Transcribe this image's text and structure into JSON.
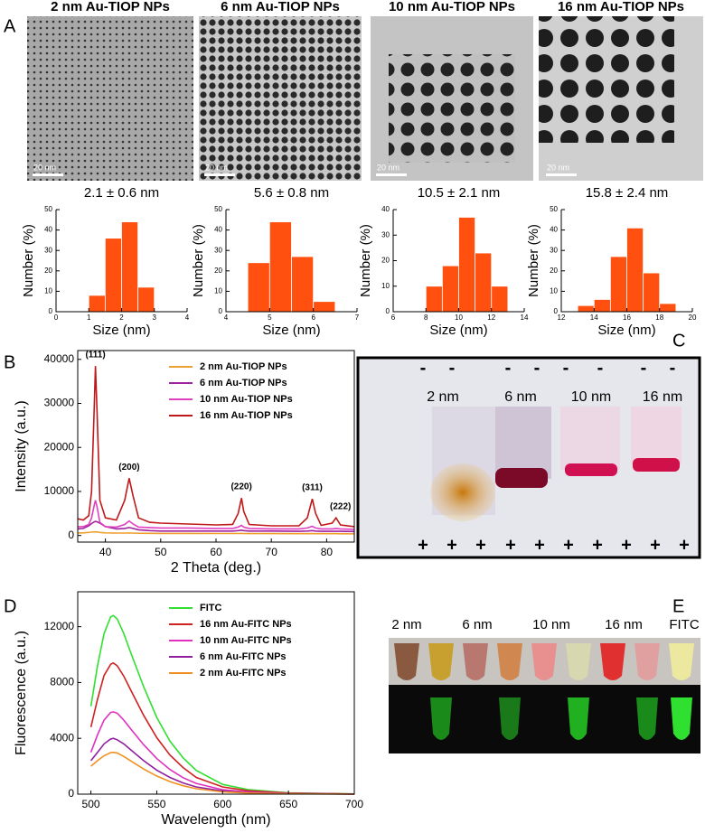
{
  "panel_labels": [
    "A",
    "B",
    "C",
    "D",
    "E"
  ],
  "tem_images": [
    {
      "title": "2 nm Au-TIOP NPs",
      "scale_bar": "20 nm"
    },
    {
      "title": "6 nm Au-TIOP NPs",
      "scale_bar": "20 nm"
    },
    {
      "title": "10 nm Au-TIOP NPs",
      "scale_bar": "20 nm"
    },
    {
      "title": "16 nm Au-TIOP NPs",
      "scale_bar": "20 nm"
    }
  ],
  "gel": {
    "lane_labels": [
      "2 nm",
      "6 nm",
      "10 nm",
      "16 nm"
    ],
    "minus": "-",
    "plus": "+"
  },
  "photo": {
    "labels": [
      "2 nm",
      "6 nm",
      "10 nm",
      "16 nm",
      "FITC"
    ]
  },
  "chart_data": [
    {
      "type": "histogram",
      "title": "2.1 ± 0.6 nm",
      "x_label": "Size (nm)",
      "y_label": "Number (%)",
      "bins": [
        1,
        1.5,
        2,
        2.5,
        3
      ],
      "values": [
        8,
        36,
        44,
        12
      ],
      "color": "#ff5010",
      "xlim": [
        0,
        4
      ],
      "xticks": [
        0,
        1,
        2,
        3,
        4
      ],
      "ylim": [
        0,
        50
      ],
      "yticks": [
        0,
        10,
        20,
        30,
        40,
        50
      ]
    },
    {
      "type": "histogram",
      "title": "5.6 ± 0.8 nm",
      "x_label": "Size (nm)",
      "y_label": "Number (%)",
      "bins": [
        4.5,
        5,
        5.5,
        6,
        6.5
      ],
      "values": [
        24,
        44,
        27,
        5
      ],
      "color": "#ff5010",
      "xlim": [
        4,
        7
      ],
      "xticks": [
        4,
        5,
        6,
        7
      ],
      "ylim": [
        0,
        50
      ],
      "yticks": [
        0,
        10,
        20,
        30,
        40,
        50
      ]
    },
    {
      "type": "histogram",
      "title": "10.5 ± 2.1 nm",
      "x_label": "Size (nm)",
      "y_label": "Number (%)",
      "bins": [
        8,
        9,
        10,
        11,
        12,
        13
      ],
      "values": [
        10,
        18,
        37,
        23,
        10
      ],
      "color": "#ff5010",
      "xlim": [
        6,
        14
      ],
      "xticks": [
        6,
        8,
        10,
        12,
        14
      ],
      "ylim": [
        0,
        40
      ],
      "yticks": [
        0,
        10,
        20,
        30,
        40
      ]
    },
    {
      "type": "histogram",
      "title": "15.8 ± 2.4 nm",
      "x_label": "Size (nm)",
      "y_label": "Number (%)",
      "bins": [
        13,
        14,
        15,
        16,
        17,
        18,
        19
      ],
      "values": [
        3,
        6,
        27,
        41,
        19,
        4
      ],
      "color": "#ff5010",
      "xlim": [
        12,
        20
      ],
      "xticks": [
        12,
        14,
        16,
        18,
        20
      ],
      "ylim": [
        0,
        50
      ],
      "yticks": [
        0,
        10,
        20,
        30,
        40,
        50
      ]
    },
    {
      "type": "line",
      "x_label": "2 Theta (deg.)",
      "y_label": "Intensity (a.u.)",
      "legend": "upper right",
      "x": [
        35,
        36,
        37,
        37.5,
        38,
        38.2,
        38.5,
        39,
        40,
        42,
        43.5,
        44.3,
        45,
        46,
        48,
        50,
        55,
        60,
        63,
        64,
        64.6,
        65,
        66,
        70,
        75,
        76.5,
        77.4,
        78,
        79,
        81,
        81.7,
        82.5,
        85
      ],
      "series": [
        {
          "name": "2 nm Au-TIOP NPs",
          "color": "#f0a030",
          "values": [
            600,
            600,
            700,
            750,
            800,
            820,
            800,
            700,
            600,
            550,
            560,
            580,
            560,
            520,
            500,
            480,
            460,
            450,
            440,
            450,
            460,
            450,
            430,
            420,
            410,
            410,
            420,
            410,
            400,
            400,
            400,
            390,
            380
          ]
        },
        {
          "name": "6 nm Au-TIOP NPs",
          "color": "#a020a0",
          "values": [
            1500,
            1600,
            2200,
            2700,
            3100,
            3200,
            3100,
            2800,
            2000,
            1500,
            1600,
            1800,
            1600,
            1300,
            1100,
            1000,
            1000,
            1000,
            1000,
            1100,
            1200,
            1100,
            1000,
            1000,
            950,
            1000,
            1100,
            1000,
            950,
            950,
            950,
            950,
            900
          ]
        },
        {
          "name": "10 nm Au-TIOP NPs",
          "color": "#e040c0",
          "values": [
            2000,
            2000,
            2500,
            4000,
            7000,
            8000,
            6500,
            3000,
            2000,
            1900,
            2500,
            3300,
            2600,
            1900,
            1800,
            1700,
            1700,
            1600,
            1600,
            1900,
            2300,
            1900,
            1600,
            1500,
            1500,
            1700,
            2100,
            1700,
            1500,
            1500,
            1600,
            1500,
            1400
          ]
        },
        {
          "name": "16 nm Au-TIOP NPs",
          "color": "#c01818",
          "values": [
            3800,
            3500,
            4500,
            10000,
            30000,
            38500,
            28000,
            8000,
            4000,
            3500,
            8000,
            13000,
            9000,
            4000,
            3000,
            2800,
            2600,
            2400,
            2500,
            5000,
            8500,
            5500,
            2500,
            2200,
            2200,
            4000,
            8300,
            5000,
            2300,
            2800,
            4000,
            2400,
            2000
          ]
        }
      ],
      "annotations": [
        {
          "text": "(111)",
          "x": 38.2,
          "y": 41000
        },
        {
          "text": "(200)",
          "x": 44.3,
          "y": 15500
        },
        {
          "text": "(220)",
          "x": 64.6,
          "y": 11000
        },
        {
          "text": "(311)",
          "x": 77.4,
          "y": 10800
        },
        {
          "text": "(222)",
          "x": 82.5,
          "y": 6500
        }
      ],
      "xlim": [
        35,
        85
      ],
      "xticks": [
        40,
        50,
        60,
        70,
        80
      ],
      "ylim": [
        -1500,
        42000
      ],
      "yticks": [
        0,
        10000,
        20000,
        30000,
        40000
      ]
    },
    {
      "type": "line",
      "x_label": "Wavelength (nm)",
      "y_label": "Fluorescence (a.u.)",
      "legend": "upper right",
      "x": [
        500,
        505,
        510,
        515,
        517,
        520,
        525,
        530,
        540,
        550,
        560,
        570,
        580,
        600,
        620,
        650,
        700
      ],
      "series": [
        {
          "name": "FITC",
          "color": "#30e030",
          "values": [
            6300,
            9200,
            11500,
            12700,
            12800,
            12550,
            11500,
            10200,
            7700,
            5500,
            3800,
            2600,
            1700,
            700,
            320,
            100,
            10
          ]
        },
        {
          "name": "16 nm Au-FITC NPs",
          "color": "#d02020",
          "values": [
            4800,
            6800,
            8500,
            9300,
            9400,
            9200,
            8450,
            7500,
            5650,
            4050,
            2800,
            1900,
            1200,
            520,
            240,
            75,
            10
          ]
        },
        {
          "name": "10 nm Au-FITC NPs",
          "color": "#e030c0",
          "values": [
            3000,
            4250,
            5300,
            5850,
            5900,
            5800,
            5300,
            4700,
            3550,
            2550,
            1770,
            1180,
            770,
            320,
            150,
            50,
            5
          ]
        },
        {
          "name": "6 nm Au-FITC NPs",
          "color": "#9020a0",
          "values": [
            2400,
            3000,
            3600,
            3950,
            4000,
            3900,
            3600,
            3200,
            2400,
            1720,
            1200,
            800,
            520,
            220,
            100,
            30,
            5
          ]
        },
        {
          "name": "2 nm Au-FITC NPs",
          "color": "#f09020",
          "values": [
            2000,
            2400,
            2750,
            2980,
            3000,
            2950,
            2700,
            2400,
            1800,
            1300,
            900,
            600,
            390,
            165,
            75,
            25,
            3
          ]
        }
      ],
      "xlim": [
        490,
        700
      ],
      "xticks": [
        500,
        550,
        600,
        650,
        700
      ],
      "ylim": [
        0,
        14500
      ],
      "yticks": [
        0,
        4000,
        8000,
        12000
      ]
    }
  ]
}
